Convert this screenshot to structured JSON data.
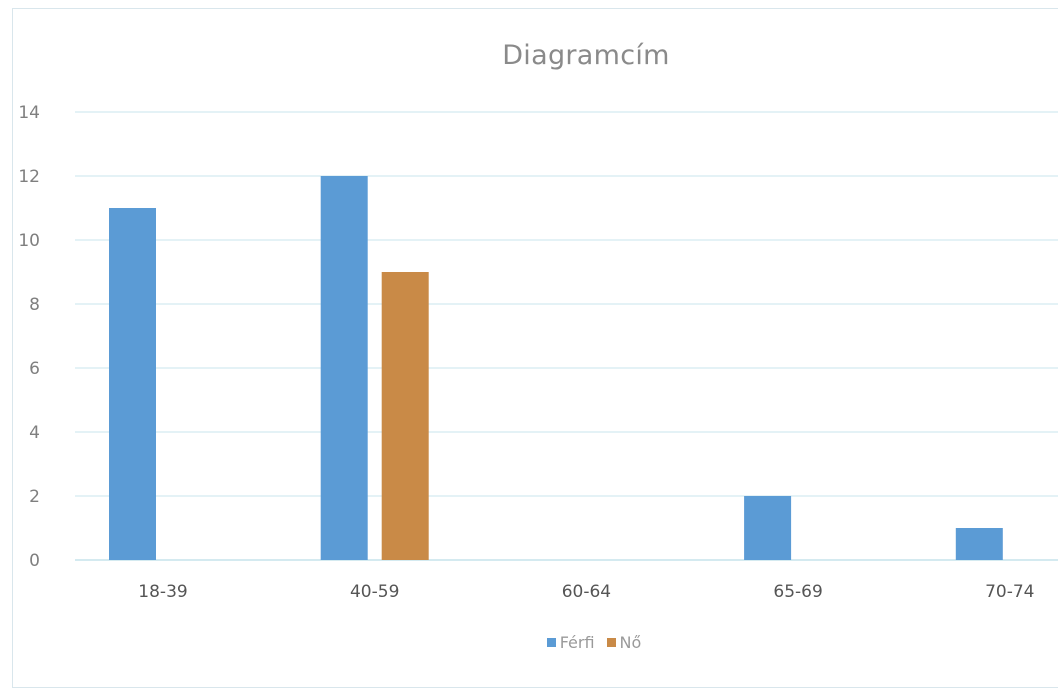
{
  "chart_data": {
    "type": "bar",
    "title": "Diagramcím",
    "categories": [
      "18-39",
      "40-59",
      "60-64",
      "65-69",
      "70-74"
    ],
    "series": [
      {
        "name": "Férfi",
        "values": [
          11,
          12,
          0,
          2,
          1
        ],
        "color": "#5b9bd5"
      },
      {
        "name": "Nő",
        "values": [
          0,
          9,
          0,
          0,
          0
        ],
        "color": "#c98a47"
      }
    ],
    "y_ticks": [
      "0",
      "2",
      "4",
      "6",
      "8",
      "10",
      "12",
      "14"
    ],
    "ylim": [
      0,
      14
    ],
    "grid": true,
    "legend_position": "bottom",
    "xlabel": "",
    "ylabel": ""
  }
}
